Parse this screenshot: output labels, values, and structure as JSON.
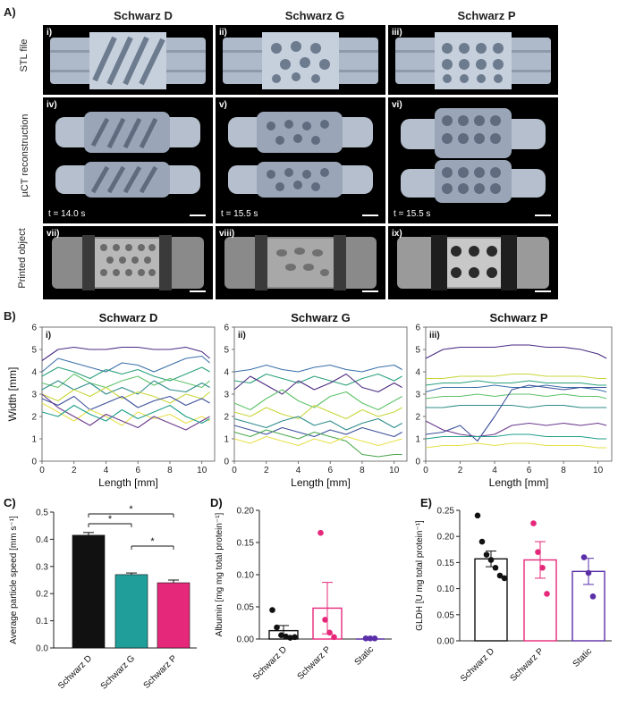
{
  "panelA": {
    "letter": "A)",
    "columns": [
      "Schwarz D",
      "Schwarz G",
      "Schwarz P"
    ],
    "row_labels": [
      "STL file",
      "µCT reconstruction",
      "Printed object"
    ],
    "panel_labels": [
      "i)",
      "ii)",
      "iii)",
      "iv)",
      "v)",
      "vi)",
      "vii)",
      "viii)",
      "ix)"
    ],
    "times": [
      "t = 14.0 s",
      "t = 15.5 s",
      "t = 15.5 s"
    ]
  },
  "panelB": {
    "letter": "B)",
    "titles": [
      "Schwarz D",
      "Schwarz G",
      "Schwarz P"
    ],
    "roman": [
      "i)",
      "ii)",
      "iii)"
    ],
    "xlabel": "Length [mm]",
    "ylabel": "Width [mm]",
    "xticks": [
      "0",
      "2",
      "4",
      "6",
      "8",
      "10"
    ],
    "yticks": [
      "0",
      "1",
      "2",
      "3",
      "4",
      "5",
      "6"
    ]
  },
  "chart_data": [
    {
      "type": "line",
      "title": "Schwarz D",
      "xlabel": "Length [mm]",
      "ylabel": "Width [mm]",
      "xlim": [
        0,
        10.8
      ],
      "ylim": [
        0,
        6
      ],
      "series": [
        {
          "name": "s1",
          "color": "#4b2a82",
          "x": [
            0,
            1,
            2,
            3,
            4,
            5,
            6,
            7,
            8,
            9,
            10,
            10.5
          ],
          "values": [
            4.5,
            5.0,
            5.1,
            5.0,
            5.0,
            5.1,
            5.1,
            5.0,
            5.0,
            5.1,
            4.9,
            4.6
          ]
        },
        {
          "name": "s2",
          "color": "#3a6fa8",
          "x": [
            0,
            1,
            2,
            3,
            4,
            5,
            6,
            7,
            8,
            9,
            10,
            10.5
          ],
          "values": [
            4.0,
            4.6,
            4.4,
            4.2,
            4.0,
            4.4,
            4.3,
            4.0,
            4.3,
            4.6,
            4.7,
            4.4
          ]
        },
        {
          "name": "s3",
          "color": "#2aa07c",
          "x": [
            0,
            1,
            2,
            3,
            4,
            5,
            6,
            7,
            8,
            9,
            10,
            10.5
          ],
          "values": [
            3.8,
            4.2,
            4.0,
            3.7,
            4.1,
            3.9,
            4.1,
            3.8,
            3.6,
            3.9,
            4.2,
            4.0
          ]
        },
        {
          "name": "s4",
          "color": "#5fc26a",
          "x": [
            0,
            1,
            2,
            3,
            4,
            5,
            6,
            7,
            8,
            9,
            10,
            10.5
          ],
          "values": [
            3.5,
            3.3,
            3.9,
            3.5,
            3.3,
            3.6,
            3.8,
            3.4,
            3.7,
            3.5,
            3.3,
            3.6
          ]
        },
        {
          "name": "s5",
          "color": "#2e8b8b",
          "x": [
            0,
            1,
            2,
            3,
            4,
            5,
            6,
            7,
            8,
            9,
            10,
            10.5
          ],
          "values": [
            3.2,
            3.6,
            3.2,
            3.5,
            3.0,
            3.3,
            3.0,
            3.6,
            3.2,
            3.1,
            3.5,
            3.3
          ]
        },
        {
          "name": "s6",
          "color": "#c8d63a",
          "x": [
            0,
            1,
            2,
            3,
            4,
            5,
            6,
            7,
            8,
            9,
            10,
            10.5
          ],
          "values": [
            3.0,
            2.7,
            3.2,
            2.9,
            3.3,
            2.8,
            3.1,
            2.9,
            2.6,
            3.0,
            2.8,
            3.1
          ]
        },
        {
          "name": "s7",
          "color": "#3b4f9a",
          "x": [
            0,
            1,
            2,
            3,
            4,
            5,
            6,
            7,
            8,
            9,
            10,
            10.5
          ],
          "values": [
            2.8,
            2.5,
            2.9,
            2.3,
            2.6,
            2.9,
            2.4,
            2.7,
            2.9,
            2.5,
            2.8,
            2.6
          ]
        },
        {
          "name": "s8",
          "color": "#e6e04a",
          "x": [
            0,
            1,
            2,
            3,
            4,
            5,
            6,
            7,
            8,
            9,
            10,
            10.5
          ],
          "values": [
            2.6,
            2.2,
            1.8,
            2.3,
            2.0,
            1.6,
            2.2,
            1.9,
            2.1,
            1.7,
            2.0,
            1.8
          ]
        },
        {
          "name": "s9",
          "color": "#6b3a8e",
          "x": [
            0,
            1,
            2,
            3,
            4,
            5,
            6,
            7,
            8,
            9,
            10,
            10.5
          ],
          "values": [
            3.0,
            2.4,
            2.0,
            1.6,
            2.1,
            1.8,
            1.5,
            2.0,
            1.7,
            1.4,
            1.8,
            2.0
          ]
        },
        {
          "name": "s10",
          "color": "#1f9e89",
          "x": [
            0,
            1,
            2,
            3,
            4,
            5,
            6,
            7,
            8,
            9,
            10,
            10.5
          ],
          "values": [
            2.2,
            2.0,
            2.5,
            2.1,
            1.8,
            2.3,
            1.9,
            2.2,
            2.5,
            2.0,
            1.7,
            1.9
          ]
        }
      ]
    },
    {
      "type": "line",
      "title": "Schwarz G",
      "xlabel": "Length [mm]",
      "ylabel": "Width [mm]",
      "xlim": [
        0,
        10.8
      ],
      "ylim": [
        0,
        6
      ],
      "series": [
        {
          "name": "s1",
          "color": "#3a6fa8",
          "x": [
            0,
            1,
            2,
            3,
            4,
            5,
            6,
            7,
            8,
            9,
            10,
            10.5
          ],
          "values": [
            4.0,
            4.1,
            4.3,
            4.1,
            4.0,
            4.2,
            4.3,
            4.1,
            4.0,
            4.2,
            4.3,
            4.1
          ]
        },
        {
          "name": "s2",
          "color": "#2aa07c",
          "x": [
            0,
            1,
            2,
            3,
            4,
            5,
            6,
            7,
            8,
            9,
            10,
            10.5
          ],
          "values": [
            3.6,
            3.5,
            3.9,
            3.7,
            3.5,
            3.8,
            3.6,
            3.4,
            3.7,
            3.9,
            3.6,
            3.8
          ]
        },
        {
          "name": "s3",
          "color": "#4b2a82",
          "x": [
            0,
            1,
            2,
            3,
            4,
            5,
            6,
            7,
            8,
            9,
            10,
            10.5
          ],
          "values": [
            3.2,
            3.8,
            3.4,
            3.0,
            3.6,
            3.2,
            3.5,
            3.9,
            3.3,
            3.1,
            3.5,
            3.3
          ]
        },
        {
          "name": "s4",
          "color": "#5fc26a",
          "x": [
            0,
            1,
            2,
            3,
            4,
            5,
            6,
            7,
            8,
            9,
            10,
            10.5
          ],
          "values": [
            2.6,
            2.3,
            2.8,
            3.2,
            2.7,
            2.4,
            2.9,
            3.1,
            2.6,
            2.3,
            2.7,
            2.9
          ]
        },
        {
          "name": "s5",
          "color": "#c8d63a",
          "x": [
            0,
            1,
            2,
            3,
            4,
            5,
            6,
            7,
            8,
            9,
            10,
            10.5
          ],
          "values": [
            2.2,
            2.0,
            2.4,
            2.1,
            1.9,
            2.5,
            2.2,
            1.9,
            2.3,
            2.0,
            2.2,
            2.4
          ]
        },
        {
          "name": "s6",
          "color": "#2e8b8b",
          "x": [
            0,
            1,
            2,
            3,
            4,
            5,
            6,
            7,
            8,
            9,
            10,
            10.5
          ],
          "values": [
            1.9,
            1.7,
            1.5,
            1.8,
            2.0,
            1.6,
            1.8,
            1.4,
            1.7,
            1.9,
            1.5,
            1.7
          ]
        },
        {
          "name": "s7",
          "color": "#3b4f9a",
          "x": [
            0,
            1,
            2,
            3,
            4,
            5,
            6,
            7,
            8,
            9,
            10,
            10.5
          ],
          "values": [
            1.6,
            1.4,
            1.2,
            1.5,
            1.3,
            1.1,
            1.4,
            1.2,
            1.5,
            1.3,
            1.1,
            1.3
          ]
        },
        {
          "name": "s8",
          "color": "#4aa84c",
          "x": [
            0,
            1,
            2,
            3,
            4,
            5,
            6,
            7,
            8,
            9,
            10,
            10.5
          ],
          "values": [
            1.3,
            1.1,
            1.4,
            1.2,
            1.0,
            1.3,
            1.1,
            0.9,
            0.3,
            0.2,
            0.3,
            0.3
          ]
        },
        {
          "name": "s9",
          "color": "#e6e04a",
          "x": [
            0,
            1,
            2,
            3,
            4,
            5,
            6,
            7,
            8,
            9,
            10,
            10.5
          ],
          "values": [
            1.0,
            0.8,
            1.1,
            0.9,
            0.7,
            1.0,
            0.8,
            1.1,
            0.9,
            0.7,
            0.9,
            1.0
          ]
        }
      ]
    },
    {
      "type": "line",
      "title": "Schwarz P",
      "xlabel": "Length [mm]",
      "ylabel": "Width [mm]",
      "xlim": [
        0,
        10.8
      ],
      "ylim": [
        0,
        6
      ],
      "series": [
        {
          "name": "s1",
          "color": "#4b2a82",
          "x": [
            0,
            1,
            2,
            3,
            4,
            5,
            6,
            7,
            8,
            9,
            10,
            10.5
          ],
          "values": [
            4.6,
            5.0,
            5.1,
            5.1,
            5.1,
            5.2,
            5.2,
            5.1,
            5.1,
            5.0,
            4.8,
            4.6
          ]
        },
        {
          "name": "s2",
          "color": "#c8d63a",
          "x": [
            0,
            1,
            2,
            3,
            4,
            5,
            6,
            7,
            8,
            9,
            10,
            10.5
          ],
          "values": [
            3.7,
            3.7,
            3.8,
            3.8,
            3.8,
            3.9,
            3.9,
            3.8,
            3.8,
            3.8,
            3.7,
            3.7
          ]
        },
        {
          "name": "s3",
          "color": "#2aa07c",
          "x": [
            0,
            1,
            2,
            3,
            4,
            5,
            6,
            7,
            8,
            9,
            10,
            10.5
          ],
          "values": [
            3.4,
            3.5,
            3.5,
            3.6,
            3.5,
            3.5,
            3.6,
            3.5,
            3.5,
            3.5,
            3.4,
            3.4
          ]
        },
        {
          "name": "s4",
          "color": "#3a6fa8",
          "x": [
            0,
            1,
            2,
            3,
            4,
            5,
            6,
            7,
            8,
            9,
            10,
            10.5
          ],
          "values": [
            3.1,
            3.3,
            3.3,
            3.3,
            3.4,
            3.3,
            3.3,
            3.4,
            3.3,
            3.3,
            3.2,
            3.1
          ]
        },
        {
          "name": "s5",
          "color": "#5fc26a",
          "x": [
            0,
            1,
            2,
            3,
            4,
            5,
            6,
            7,
            8,
            9,
            10,
            10.5
          ],
          "values": [
            2.8,
            2.9,
            2.9,
            3.0,
            2.9,
            3.0,
            3.0,
            2.9,
            3.0,
            2.9,
            2.9,
            2.8
          ]
        },
        {
          "name": "s6",
          "color": "#2e8b8b",
          "x": [
            0,
            1,
            2,
            3,
            4,
            5,
            6,
            7,
            8,
            9,
            10,
            10.5
          ],
          "values": [
            2.4,
            2.4,
            2.5,
            2.5,
            2.5,
            2.5,
            2.4,
            2.5,
            2.5,
            2.4,
            2.4,
            2.4
          ]
        },
        {
          "name": "s7",
          "color": "#3b4f9a",
          "x": [
            0,
            1,
            2,
            3,
            4,
            5,
            6,
            7,
            8,
            9,
            10,
            10.5
          ],
          "values": [
            1.2,
            1.3,
            1.6,
            0.9,
            2.0,
            3.2,
            3.4,
            3.3,
            3.2,
            3.3,
            3.3,
            3.3
          ]
        },
        {
          "name": "s8",
          "color": "#6b3a8e",
          "x": [
            0,
            1,
            2,
            3,
            4,
            5,
            6,
            7,
            8,
            9,
            10,
            10.5
          ],
          "values": [
            1.8,
            1.4,
            1.2,
            1.1,
            1.2,
            1.6,
            1.7,
            1.6,
            1.7,
            1.6,
            1.7,
            1.6
          ]
        },
        {
          "name": "s9",
          "color": "#1f9e89",
          "x": [
            0,
            1,
            2,
            3,
            4,
            5,
            6,
            7,
            8,
            9,
            10,
            10.5
          ],
          "values": [
            1.0,
            1.1,
            1.1,
            1.1,
            1.1,
            1.2,
            1.2,
            1.1,
            1.1,
            1.1,
            1.0,
            1.0
          ]
        },
        {
          "name": "s10",
          "color": "#e6e04a",
          "x": [
            0,
            1,
            2,
            3,
            4,
            5,
            6,
            7,
            8,
            9,
            10,
            10.5
          ],
          "values": [
            0.6,
            0.7,
            0.7,
            0.8,
            0.7,
            0.8,
            0.8,
            0.7,
            0.7,
            0.7,
            0.6,
            0.6
          ]
        }
      ]
    },
    {
      "type": "bar",
      "title": "",
      "letter": "C)",
      "ylabel": "Average particle speed [mm s⁻¹]",
      "categories": [
        "Schwarz D",
        "Schwarz G",
        "Schwarz P"
      ],
      "values": [
        0.415,
        0.27,
        0.24
      ],
      "errors": [
        0.01,
        0.006,
        0.01
      ],
      "colors": [
        "#111111",
        "#1f9e9a",
        "#e6287a"
      ],
      "ylim": [
        0,
        0.5
      ],
      "yticks": [
        "0.0",
        "0.1",
        "0.2",
        "0.3",
        "0.4",
        "0.5"
      ],
      "significance": [
        {
          "from": 0,
          "to": 1,
          "label": "*"
        },
        {
          "from": 0,
          "to": 2,
          "label": "*"
        },
        {
          "from": 1,
          "to": 2,
          "label": "*"
        }
      ]
    },
    {
      "type": "bar",
      "title": "",
      "letter": "D)",
      "ylabel": "Albumin [mg mg total protein⁻¹]",
      "categories": [
        "Schwarz D",
        "Schwarz P",
        "Static"
      ],
      "values": [
        0.013,
        0.048,
        0.0
      ],
      "errors": [
        0.008,
        0.04,
        0.0
      ],
      "colors": [
        "#111111",
        "#e6287a",
        "#5a2fa8"
      ],
      "ylim": [
        0,
        0.2
      ],
      "yticks": [
        "0.00",
        "0.05",
        "0.10",
        "0.15",
        "0.20"
      ],
      "points": [
        [
          0.045,
          0.018,
          0.006,
          0.004,
          0.002,
          0.003
        ],
        [
          0.165,
          0.03,
          0.01,
          0.003
        ],
        [
          0.001,
          0.001,
          0.001
        ]
      ]
    },
    {
      "type": "bar",
      "title": "",
      "letter": "E)",
      "ylabel": "GLDH [U mg total protein⁻¹]",
      "categories": [
        "Schwarz D",
        "Schwarz P",
        "Static"
      ],
      "values": [
        0.157,
        0.155,
        0.133
      ],
      "errors": [
        0.015,
        0.035,
        0.025
      ],
      "colors": [
        "#111111",
        "#e6287a",
        "#5a2fa8"
      ],
      "ylim": [
        0,
        0.25
      ],
      "yticks": [
        "0.00",
        "0.05",
        "0.10",
        "0.15",
        "0.20",
        "0.25"
      ],
      "points": [
        [
          0.24,
          0.19,
          0.165,
          0.155,
          0.14,
          0.125,
          0.12
        ],
        [
          0.225,
          0.17,
          0.14,
          0.09
        ],
        [
          0.16,
          0.13,
          0.085
        ]
      ]
    }
  ]
}
